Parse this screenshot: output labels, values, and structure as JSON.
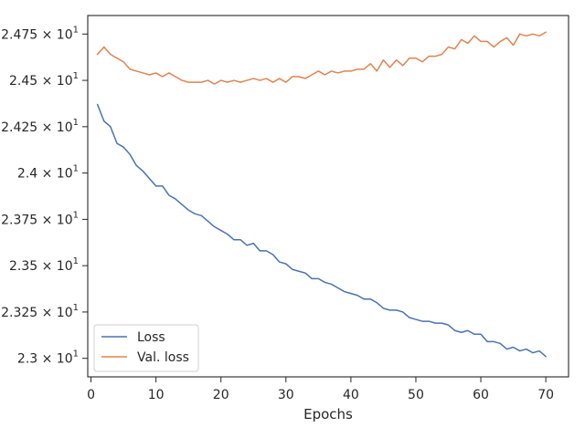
{
  "chart_data": {
    "type": "line",
    "title": "",
    "xlabel": "Epochs",
    "ylabel": "",
    "xlim": [
      -0.5,
      73.5
    ],
    "ylim": [
      22.9,
      24.85
    ],
    "grid": false,
    "legend_placement": "lower-left",
    "x_ticks": [
      0,
      10,
      20,
      30,
      40,
      50,
      60,
      70
    ],
    "x_tick_labels": [
      "0",
      "10",
      "20",
      "30",
      "40",
      "50",
      "60",
      "70"
    ],
    "y_ticks": [
      23.0,
      23.25,
      23.5,
      23.75,
      24.0,
      24.25,
      24.5,
      24.75
    ],
    "y_tick_labels": [
      {
        "mantissa": "2.3",
        "base": "10",
        "exp": "1"
      },
      {
        "mantissa": "2.325",
        "base": "10",
        "exp": "1"
      },
      {
        "mantissa": "2.35",
        "base": "10",
        "exp": "1"
      },
      {
        "mantissa": "2.375",
        "base": "10",
        "exp": "1"
      },
      {
        "mantissa": "2.4",
        "base": "10",
        "exp": "1"
      },
      {
        "mantissa": "2.425",
        "base": "10",
        "exp": "1"
      },
      {
        "mantissa": "2.45",
        "base": "10",
        "exp": "1"
      },
      {
        "mantissa": "2.475",
        "base": "10",
        "exp": "1"
      }
    ],
    "series": [
      {
        "name": "Loss",
        "color": "#4c72b0",
        "x": [
          1,
          2,
          3,
          4,
          5,
          6,
          7,
          8,
          9,
          10,
          11,
          12,
          13,
          14,
          15,
          16,
          17,
          18,
          19,
          20,
          21,
          22,
          23,
          24,
          25,
          26,
          27,
          28,
          29,
          30,
          31,
          32,
          33,
          34,
          35,
          36,
          37,
          38,
          39,
          40,
          41,
          42,
          43,
          44,
          45,
          46,
          47,
          48,
          49,
          50,
          51,
          52,
          53,
          54,
          55,
          56,
          57,
          58,
          59,
          60,
          61,
          62,
          63,
          64,
          65,
          66,
          67,
          68,
          69,
          70
        ],
        "values": [
          24.37,
          24.28,
          24.25,
          24.16,
          24.14,
          24.1,
          24.04,
          24.01,
          23.97,
          23.93,
          23.93,
          23.88,
          23.86,
          23.83,
          23.8,
          23.78,
          23.77,
          23.74,
          23.71,
          23.69,
          23.67,
          23.64,
          23.64,
          23.61,
          23.62,
          23.58,
          23.58,
          23.56,
          23.52,
          23.51,
          23.48,
          23.47,
          23.46,
          23.43,
          23.43,
          23.41,
          23.4,
          23.38,
          23.36,
          23.35,
          23.34,
          23.32,
          23.32,
          23.3,
          23.27,
          23.26,
          23.26,
          23.25,
          23.22,
          23.21,
          23.2,
          23.2,
          23.19,
          23.19,
          23.18,
          23.15,
          23.14,
          23.15,
          23.13,
          23.13,
          23.09,
          23.09,
          23.08,
          23.05,
          23.06,
          23.04,
          23.05,
          23.03,
          23.04,
          23.01
        ]
      },
      {
        "name": "Val. loss",
        "color": "#dd8452",
        "x": [
          1,
          2,
          3,
          4,
          5,
          6,
          7,
          8,
          9,
          10,
          11,
          12,
          13,
          14,
          15,
          16,
          17,
          18,
          19,
          20,
          21,
          22,
          23,
          24,
          25,
          26,
          27,
          28,
          29,
          30,
          31,
          32,
          33,
          34,
          35,
          36,
          37,
          38,
          39,
          40,
          41,
          42,
          43,
          44,
          45,
          46,
          47,
          48,
          49,
          50,
          51,
          52,
          53,
          54,
          55,
          56,
          57,
          58,
          59,
          60,
          61,
          62,
          63,
          64,
          65,
          66,
          67,
          68,
          69,
          70
        ],
        "values": [
          24.64,
          24.68,
          24.64,
          24.62,
          24.6,
          24.56,
          24.55,
          24.54,
          24.53,
          24.54,
          24.52,
          24.54,
          24.52,
          24.5,
          24.49,
          24.49,
          24.49,
          24.5,
          24.48,
          24.5,
          24.49,
          24.5,
          24.49,
          24.5,
          24.51,
          24.5,
          24.51,
          24.49,
          24.51,
          24.49,
          24.52,
          24.52,
          24.51,
          24.53,
          24.55,
          24.53,
          24.55,
          24.54,
          24.55,
          24.55,
          24.56,
          24.56,
          24.59,
          24.55,
          24.61,
          24.57,
          24.61,
          24.58,
          24.62,
          24.62,
          24.6,
          24.63,
          24.63,
          24.64,
          24.68,
          24.67,
          24.72,
          24.7,
          24.74,
          24.71,
          24.71,
          24.68,
          24.71,
          24.73,
          24.69,
          24.75,
          24.74,
          24.75,
          24.74,
          24.76
        ]
      }
    ]
  }
}
